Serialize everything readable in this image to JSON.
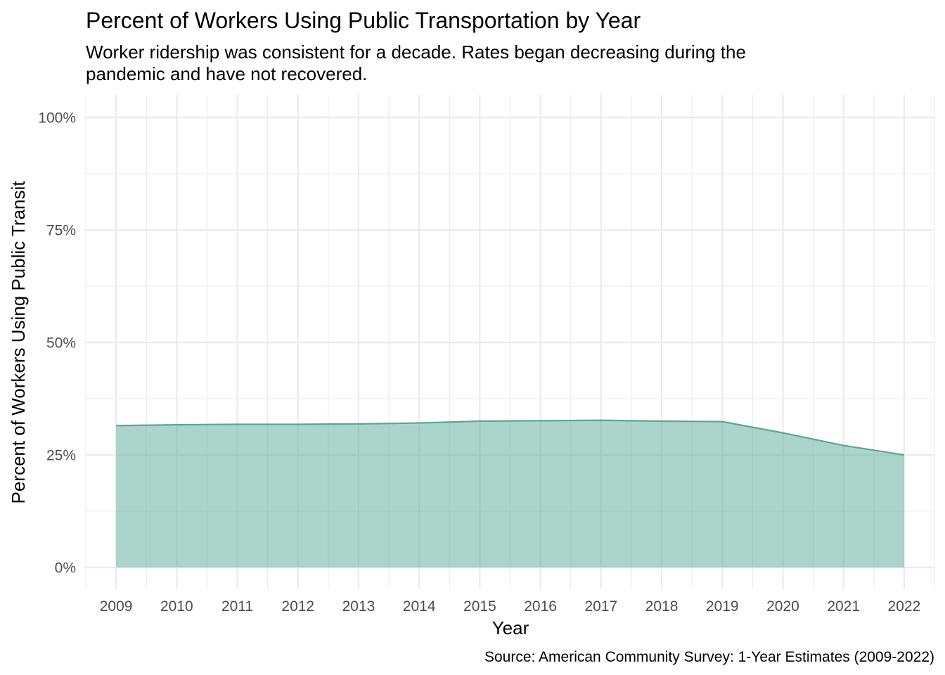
{
  "chart_data": {
    "type": "area",
    "title": "Percent of Workers Using Public Transportation by Year",
    "subtitle_lines": [
      "Worker ridership was consistent for a decade. Rates began decreasing during the",
      "pandemic and have not recovered."
    ],
    "xlabel": "Year",
    "ylabel": "Percent of Workers Using Public Transit",
    "caption": "Source: American Community Survey: 1-Year Estimates (2009-2022)",
    "x": [
      2009,
      2010,
      2011,
      2012,
      2013,
      2014,
      2015,
      2016,
      2017,
      2018,
      2019,
      2020,
      2021,
      2022
    ],
    "x_tick_labels": [
      "2009",
      "2010",
      "2011",
      "2012",
      "2013",
      "2014",
      "2015",
      "2016",
      "2017",
      "2018",
      "2019",
      "2020",
      "2021",
      "2022"
    ],
    "series": [
      {
        "values": [
          31.5,
          31.7,
          31.8,
          31.8,
          31.9,
          32.1,
          32.5,
          32.6,
          32.7,
          32.5,
          32.4,
          29.9,
          27.1,
          25.0
        ]
      }
    ],
    "y_unit": "percent",
    "ylim": [
      0,
      100
    ],
    "y_ticks": [
      0,
      25,
      50,
      75,
      100
    ],
    "y_tick_labels": [
      "0%",
      "25%",
      "50%",
      "75%",
      "100%"
    ],
    "xlim": [
      2008.5,
      2022.5
    ],
    "grid": true,
    "legend": "none",
    "colors": {
      "line": "#5aa794",
      "fill": "#66b2a0",
      "grid": "#ebebeb",
      "tick_text": "#4d4d4d",
      "text": "#000000"
    }
  }
}
